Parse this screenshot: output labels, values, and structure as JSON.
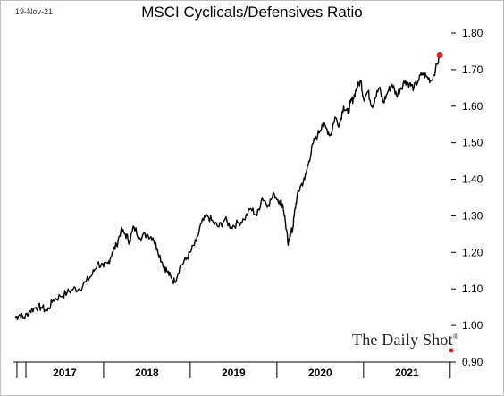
{
  "header": {
    "date_stamp": "19-Nov-21",
    "title": "MSCI Cyclicals/Defensives Ratio"
  },
  "branding": {
    "name": "The Daily Shot",
    "mark": "®"
  },
  "colors": {
    "line": "#000000",
    "endpoint": "#e31a1c"
  },
  "chart_data": {
    "type": "line",
    "title": "MSCI Cyclicals/Defensives Ratio",
    "xlabel": "",
    "ylabel": "",
    "ylim": [
      0.9,
      1.8
    ],
    "y_axis_position": "right",
    "grid": false,
    "y_ticks": [
      "0.90",
      "1.00",
      "1.10",
      "1.20",
      "1.30",
      "1.40",
      "1.50",
      "1.60",
      "1.70",
      "1.80"
    ],
    "x_categories": [
      "2017",
      "2018",
      "2019",
      "2020",
      "2021"
    ],
    "x_range": [
      2016.98,
      2021.93
    ],
    "series": [
      {
        "x": [
          2016.98,
          2017.03,
          2017.08,
          2017.15,
          2017.22,
          2017.28,
          2017.35,
          2017.42,
          2017.5,
          2017.58,
          2017.65,
          2017.72,
          2017.8,
          2017.87,
          2017.93,
          2018.0,
          2018.05,
          2018.1,
          2018.15,
          2018.2,
          2018.25,
          2018.3,
          2018.35,
          2018.42,
          2018.5,
          2018.57,
          2018.62,
          2018.68,
          2018.73,
          2018.78,
          2018.82,
          2018.88,
          2018.95,
          2019.0,
          2019.07,
          2019.13,
          2019.2,
          2019.27,
          2019.33,
          2019.4,
          2019.47,
          2019.55,
          2019.62,
          2019.7,
          2019.77,
          2019.83,
          2019.9,
          2019.97,
          2020.03,
          2020.07,
          2020.1,
          2020.13,
          2020.15,
          2020.18,
          2020.2,
          2020.23,
          2020.27,
          2020.32,
          2020.37,
          2020.42,
          2020.47,
          2020.52,
          2020.57,
          2020.62,
          2020.67,
          2020.72,
          2020.77,
          2020.82,
          2020.85,
          2020.88,
          2020.92,
          2020.97,
          2021.0,
          2021.05,
          2021.1,
          2021.13,
          2021.18,
          2021.23,
          2021.28,
          2021.33,
          2021.38,
          2021.43,
          2021.48,
          2021.53,
          2021.58,
          2021.63,
          2021.68,
          2021.73,
          2021.78,
          2021.83,
          2021.88
        ],
        "y": [
          1.02,
          1.03,
          1.02,
          1.04,
          1.05,
          1.05,
          1.04,
          1.07,
          1.08,
          1.09,
          1.1,
          1.1,
          1.12,
          1.14,
          1.17,
          1.16,
          1.17,
          1.2,
          1.22,
          1.26,
          1.25,
          1.23,
          1.27,
          1.24,
          1.25,
          1.24,
          1.21,
          1.17,
          1.15,
          1.13,
          1.12,
          1.16,
          1.18,
          1.2,
          1.23,
          1.28,
          1.3,
          1.28,
          1.27,
          1.29,
          1.27,
          1.28,
          1.29,
          1.32,
          1.3,
          1.35,
          1.33,
          1.36,
          1.34,
          1.33,
          1.28,
          1.22,
          1.25,
          1.26,
          1.3,
          1.35,
          1.38,
          1.4,
          1.45,
          1.5,
          1.52,
          1.55,
          1.54,
          1.52,
          1.57,
          1.55,
          1.6,
          1.58,
          1.61,
          1.62,
          1.65,
          1.67,
          1.62,
          1.64,
          1.6,
          1.62,
          1.65,
          1.61,
          1.64,
          1.66,
          1.63,
          1.65,
          1.67,
          1.66,
          1.65,
          1.67,
          1.69,
          1.68,
          1.67,
          1.7,
          1.74
        ]
      }
    ],
    "endpoint": {
      "x": 2021.88,
      "y": 1.74
    }
  }
}
